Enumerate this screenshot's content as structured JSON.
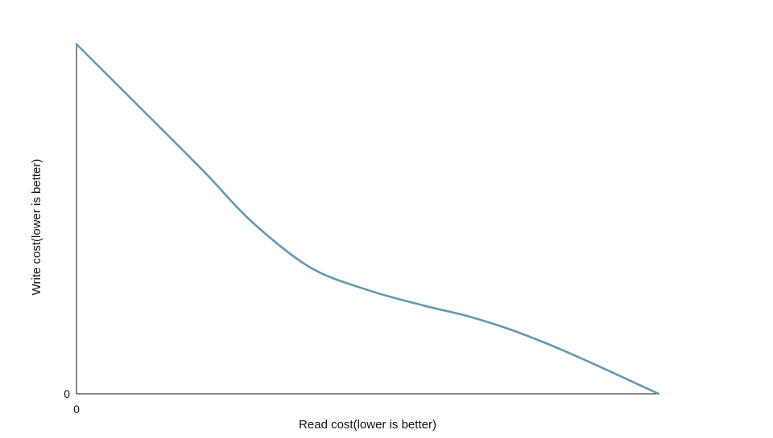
{
  "chart_data": {
    "type": "line",
    "title": "",
    "xlabel": "Read cost(lower is better)",
    "ylabel": "Write cost(lower is better)",
    "x_ticks": [
      "0"
    ],
    "y_ticks": [
      "0"
    ],
    "xlim": [
      0,
      100
    ],
    "ylim": [
      0,
      100
    ],
    "grid": false,
    "series": [
      {
        "color": "#6699b0",
        "x": [
          0,
          10,
          22,
          30,
          40,
          50,
          60,
          67,
          75,
          85,
          100
        ],
        "y": [
          100,
          83.4,
          63.4,
          49.4,
          36.3,
          29.7,
          25.1,
          22.3,
          18.1,
          11.4,
          0
        ]
      }
    ],
    "axis_color": "#111111"
  }
}
